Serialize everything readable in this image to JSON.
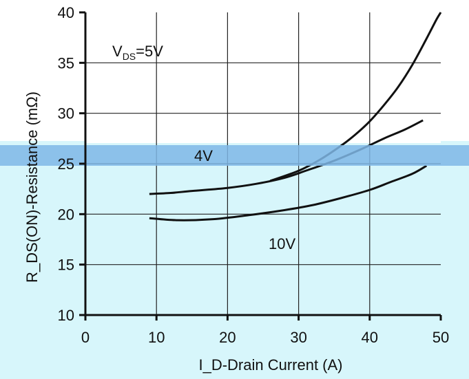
{
  "chart_data": {
    "type": "line",
    "title": "",
    "xlabel": "I_D-Drain Current (A)",
    "ylabel": "R_DS(ON)-Resistance (mΩ)",
    "x_ticks": [
      "0",
      "10",
      "20",
      "30",
      "40",
      "50"
    ],
    "y_ticks": [
      "10",
      "15",
      "20",
      "25",
      "30",
      "35",
      "40"
    ],
    "xlim": [
      0,
      50
    ],
    "ylim": [
      10,
      40
    ],
    "grid": true,
    "annotations": [
      {
        "text": "V",
        "sub": "DS",
        "rest": "=5V"
      },
      {
        "text": "4V"
      },
      {
        "text": "10V"
      }
    ],
    "series": [
      {
        "x": [
          26,
          30,
          33,
          36,
          38,
          40,
          42,
          44,
          46,
          48,
          49.4,
          50
        ],
        "y": [
          23.3,
          24.3,
          25.4,
          26.8,
          27.9,
          29.2,
          30.8,
          32.6,
          34.8,
          37.4,
          39.3,
          40
        ]
      },
      {
        "x": [
          9,
          12,
          15,
          20,
          24,
          28,
          31,
          35,
          39,
          42,
          45,
          47.5
        ],
        "y": [
          22.0,
          22.1,
          22.3,
          22.6,
          23.0,
          23.6,
          24.3,
          25.3,
          26.5,
          27.5,
          28.4,
          29.3
        ]
      },
      {
        "x": [
          9,
          13,
          18,
          23,
          28,
          32,
          36,
          40,
          43,
          46,
          48
        ],
        "y": [
          19.6,
          19.4,
          19.5,
          19.9,
          20.4,
          20.9,
          21.6,
          22.4,
          23.2,
          24.0,
          24.8
        ]
      }
    ]
  },
  "colors": {
    "line": "#111111",
    "grid": "#222222",
    "band": "#7fb7e6",
    "lower_bg": "#d7f6fb"
  }
}
